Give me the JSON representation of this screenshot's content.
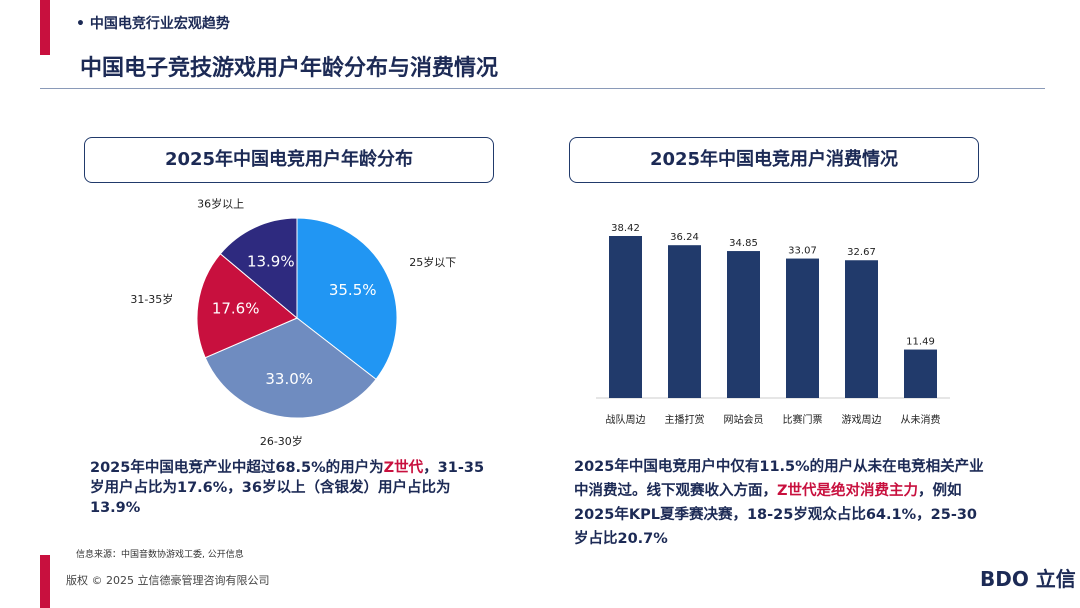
{
  "header": {
    "section": "中国电竞行业宏观趋势",
    "title": "中国电子竞技游戏用户年龄分布与消费情况"
  },
  "chart_data": [
    {
      "type": "pie",
      "title": "2025年中国电竞用户年龄分布",
      "categories": [
        "25岁以下",
        "26-30岁",
        "31-35岁",
        "36岁以上"
      ],
      "values": [
        35.5,
        33.0,
        17.6,
        13.9
      ],
      "value_labels": [
        "35.5%",
        "33.0%",
        "17.6%",
        "13.9%"
      ],
      "colors": [
        "#2196f3",
        "#6f8cc0",
        "#c8103e",
        "#2e2a7f"
      ]
    },
    {
      "type": "bar",
      "title": "2025年中国电竞用户消费情况",
      "categories": [
        "战队周边",
        "主播打赏",
        "网站会员",
        "比赛门票",
        "游戏周边",
        "从未消费"
      ],
      "values": [
        38.42,
        36.24,
        34.85,
        33.07,
        32.67,
        11.49
      ],
      "color": "#213a6b"
    }
  ],
  "notes": [
    [
      "2025年中国电竞产业中超过68.5%的用户为",
      "Z世代",
      "，31-35岁用户占比为17.6%，36岁以上（含银发）用户占比为13.9%"
    ],
    [
      "2025年中国电竞用户中仅有11.5%的用户从未在电竞相关产业中消费过。线下观赛收入方面，",
      "Z世代是绝对消费主力",
      "，例如2025年KPL夏季赛决赛，18-25岁观众占比64.1%，25-30岁占比20.7%"
    ]
  ],
  "source": "信息来源：中国音数协游戏工委, 公开信息",
  "footer": {
    "copyright": "版权 © 2025 立信德豪管理咨询有限公司",
    "logo": "BDO 立信"
  }
}
